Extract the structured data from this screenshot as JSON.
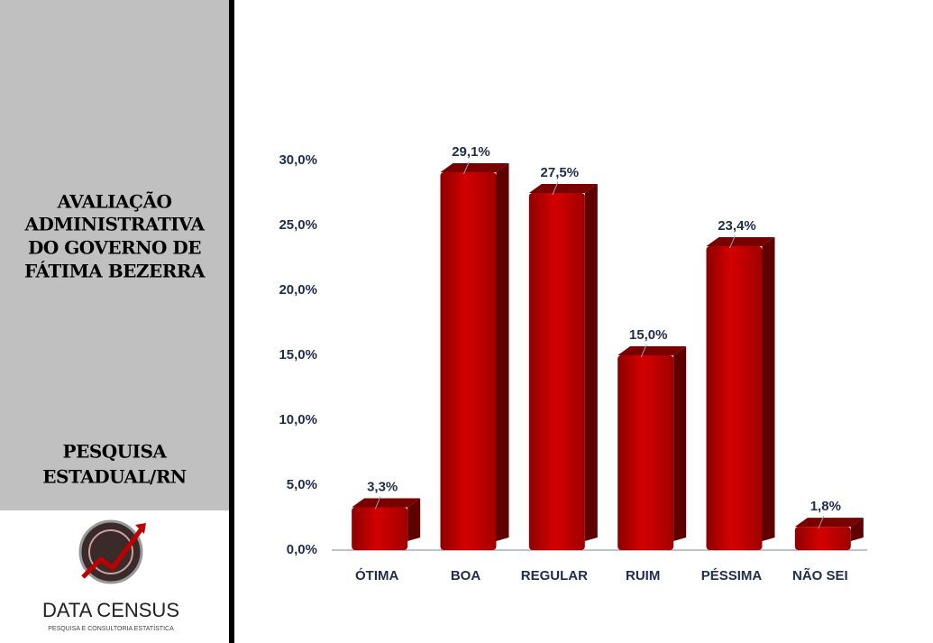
{
  "chart_data": {
    "type": "bar",
    "title": [
      "AVALIAÇÃO",
      "ADMINISTRATIVA",
      "DO GOVERNO DE",
      "FÁTIMA BEZERRA"
    ],
    "subtitle": [
      "PESQUISA",
      "ESTADUAL/RN"
    ],
    "categories": [
      "ÓTIMA",
      "BOA",
      "REGULAR",
      "RUIM",
      "PÉSSIMA",
      "NÃO SEI"
    ],
    "values": [
      3.3,
      29.1,
      27.5,
      15.0,
      23.4,
      1.8
    ],
    "value_labels": [
      "3,3%",
      "29,1%",
      "27,5%",
      "15,0%",
      "23,4%",
      "1,8%"
    ],
    "color": "#c00000",
    "ylim": [
      0,
      30
    ],
    "yticks": [
      {
        "value": 0,
        "label": "0,0%"
      },
      {
        "value": 5,
        "label": "5,0%"
      },
      {
        "value": 10,
        "label": "10,0%"
      },
      {
        "value": 15,
        "label": "15,0%"
      },
      {
        "value": 20,
        "label": "20,0%"
      },
      {
        "value": 25,
        "label": "25,0%"
      },
      {
        "value": 30,
        "label": "30,0%"
      }
    ],
    "grid": false
  },
  "logo": {
    "name": "DATA CENSUS",
    "tagline": "PESQUISA E CONSULTORIA ESTATÍSTICA"
  }
}
